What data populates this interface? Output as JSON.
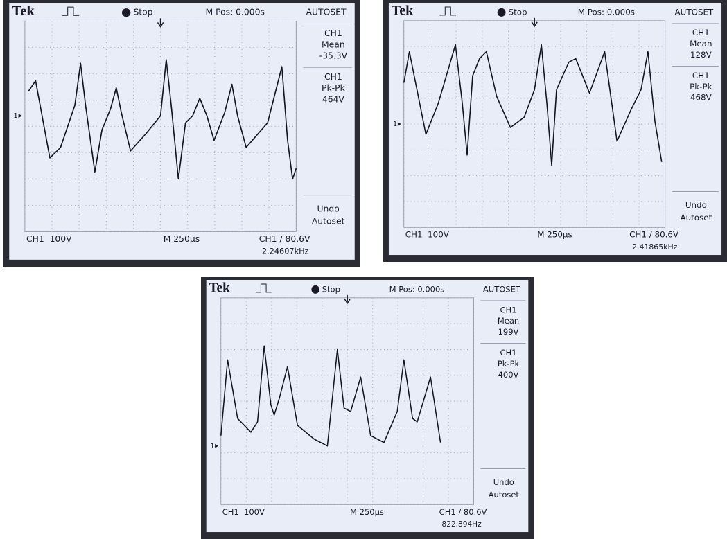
{
  "screens": [
    {
      "brand": "Tek",
      "status": "Stop",
      "position": "M Pos: 0.000s",
      "menu_title": "AUTOSET",
      "measurements": [
        {
          "channel": "CH1",
          "label": "Mean",
          "value": "-35.3V"
        },
        {
          "channel": "CH1",
          "label": "Pk-Pk",
          "value": "464V"
        }
      ],
      "undo": "Undo",
      "autoset": "Autoset",
      "channel_scale": "CH1  100V",
      "time_scale": "M 250µs",
      "trigger": "CH1 / 80.6V",
      "frequency": "2.24607kHz",
      "marker": "1"
    },
    {
      "brand": "Tek",
      "status": "Stop",
      "position": "M Pos: 0.000s",
      "menu_title": "AUTOSET",
      "measurements": [
        {
          "channel": "CH1",
          "label": "Mean",
          "value": "128V"
        },
        {
          "channel": "CH1",
          "label": "Pk-Pk",
          "value": "468V"
        }
      ],
      "undo": "Undo",
      "autoset": "Autoset",
      "channel_scale": "CH1  100V",
      "time_scale": "M 250µs",
      "trigger": "CH1 / 80.6V",
      "frequency": "2.41865kHz",
      "marker": "1"
    },
    {
      "brand": "Tek",
      "status": "Stop",
      "position": "M Pos: 0.000s",
      "menu_title": "AUTOSET",
      "measurements": [
        {
          "channel": "CH1",
          "label": "Mean",
          "value": "199V"
        },
        {
          "channel": "CH1",
          "label": "Pk-Pk",
          "value": "400V"
        }
      ],
      "undo": "Undo",
      "autoset": "Autoset",
      "channel_scale": "CH1  100V",
      "time_scale": "M 250µs",
      "trigger": "CH1 / 80.6V",
      "frequency": "822.894Hz",
      "marker": "1"
    }
  ]
}
